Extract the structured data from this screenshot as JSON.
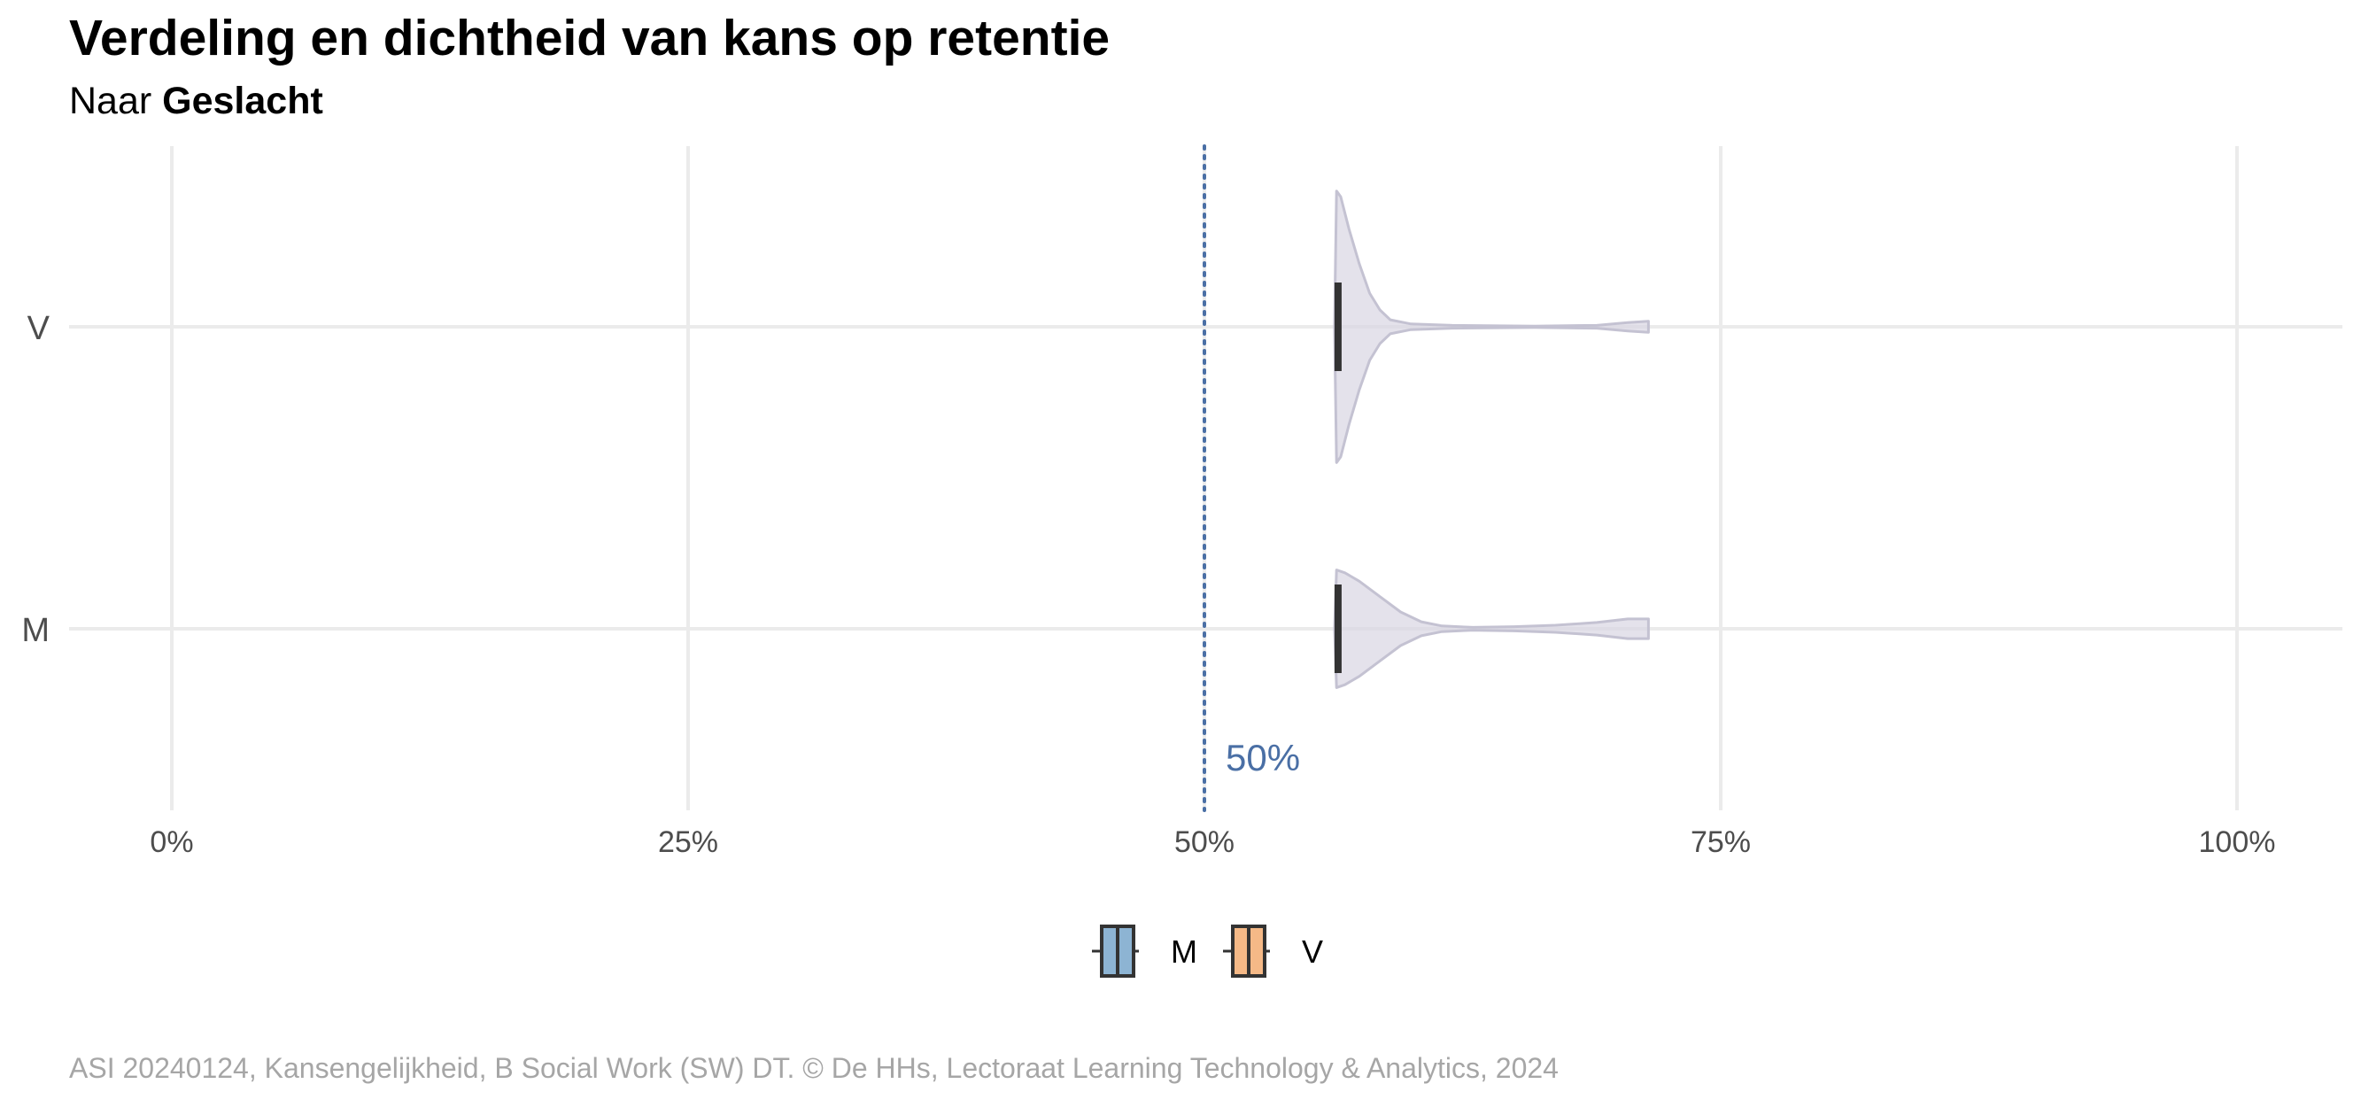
{
  "header": {
    "title": "Verdeling en dichtheid van kans op retentie",
    "subtitle_prefix": "Naar",
    "subtitle_group": "Geslacht"
  },
  "caption": "ASI 20240124, Kansengelijkheid, B Social Work (SW) DT. © De HHs, Lectoraat Learning Technology & Analytics, 2024",
  "chart_data": {
    "type": "violin",
    "orientation": "horizontal",
    "xlim": [
      0,
      100
    ],
    "x_ticks": [
      0,
      25,
      50,
      75,
      100
    ],
    "x_tick_labels": [
      "0%",
      "25%",
      "50%",
      "75%",
      "100%"
    ],
    "categories": [
      "V",
      "M"
    ],
    "reference_line": {
      "value": 50,
      "label": "50%",
      "style": "dotted",
      "color": "#4a6fa5"
    },
    "series": [
      {
        "name": "V",
        "box": {
          "q1": 56.3,
          "median": 56.4,
          "q3": 56.5
        },
        "density_profile": [
          [
            56.3,
            0.0
          ],
          [
            56.4,
            0.97
          ],
          [
            56.6,
            0.93
          ],
          [
            57.0,
            0.7
          ],
          [
            57.5,
            0.45
          ],
          [
            58.0,
            0.24
          ],
          [
            58.5,
            0.12
          ],
          [
            59.0,
            0.05
          ],
          [
            60.0,
            0.02
          ],
          [
            62.0,
            0.01
          ],
          [
            66.0,
            0.005
          ],
          [
            69.0,
            0.01
          ],
          [
            70.5,
            0.03
          ],
          [
            71.5,
            0.04
          ]
        ]
      },
      {
        "name": "M",
        "box": {
          "q1": 56.3,
          "median": 56.4,
          "q3": 56.5
        },
        "density_profile": [
          [
            56.3,
            0.0
          ],
          [
            56.4,
            0.42
          ],
          [
            56.8,
            0.4
          ],
          [
            57.5,
            0.34
          ],
          [
            58.5,
            0.23
          ],
          [
            59.5,
            0.12
          ],
          [
            60.5,
            0.05
          ],
          [
            61.5,
            0.02
          ],
          [
            63.0,
            0.01
          ],
          [
            65.0,
            0.015
          ],
          [
            67.0,
            0.025
          ],
          [
            69.0,
            0.045
          ],
          [
            70.5,
            0.07
          ],
          [
            71.5,
            0.07
          ]
        ]
      }
    ],
    "legend": {
      "placement": "bottom",
      "items": [
        {
          "label": "M",
          "color": "#8db4d3"
        },
        {
          "label": "V",
          "color": "#f5b987"
        }
      ]
    },
    "violin_color": "#d8d6e2",
    "grid": true
  }
}
